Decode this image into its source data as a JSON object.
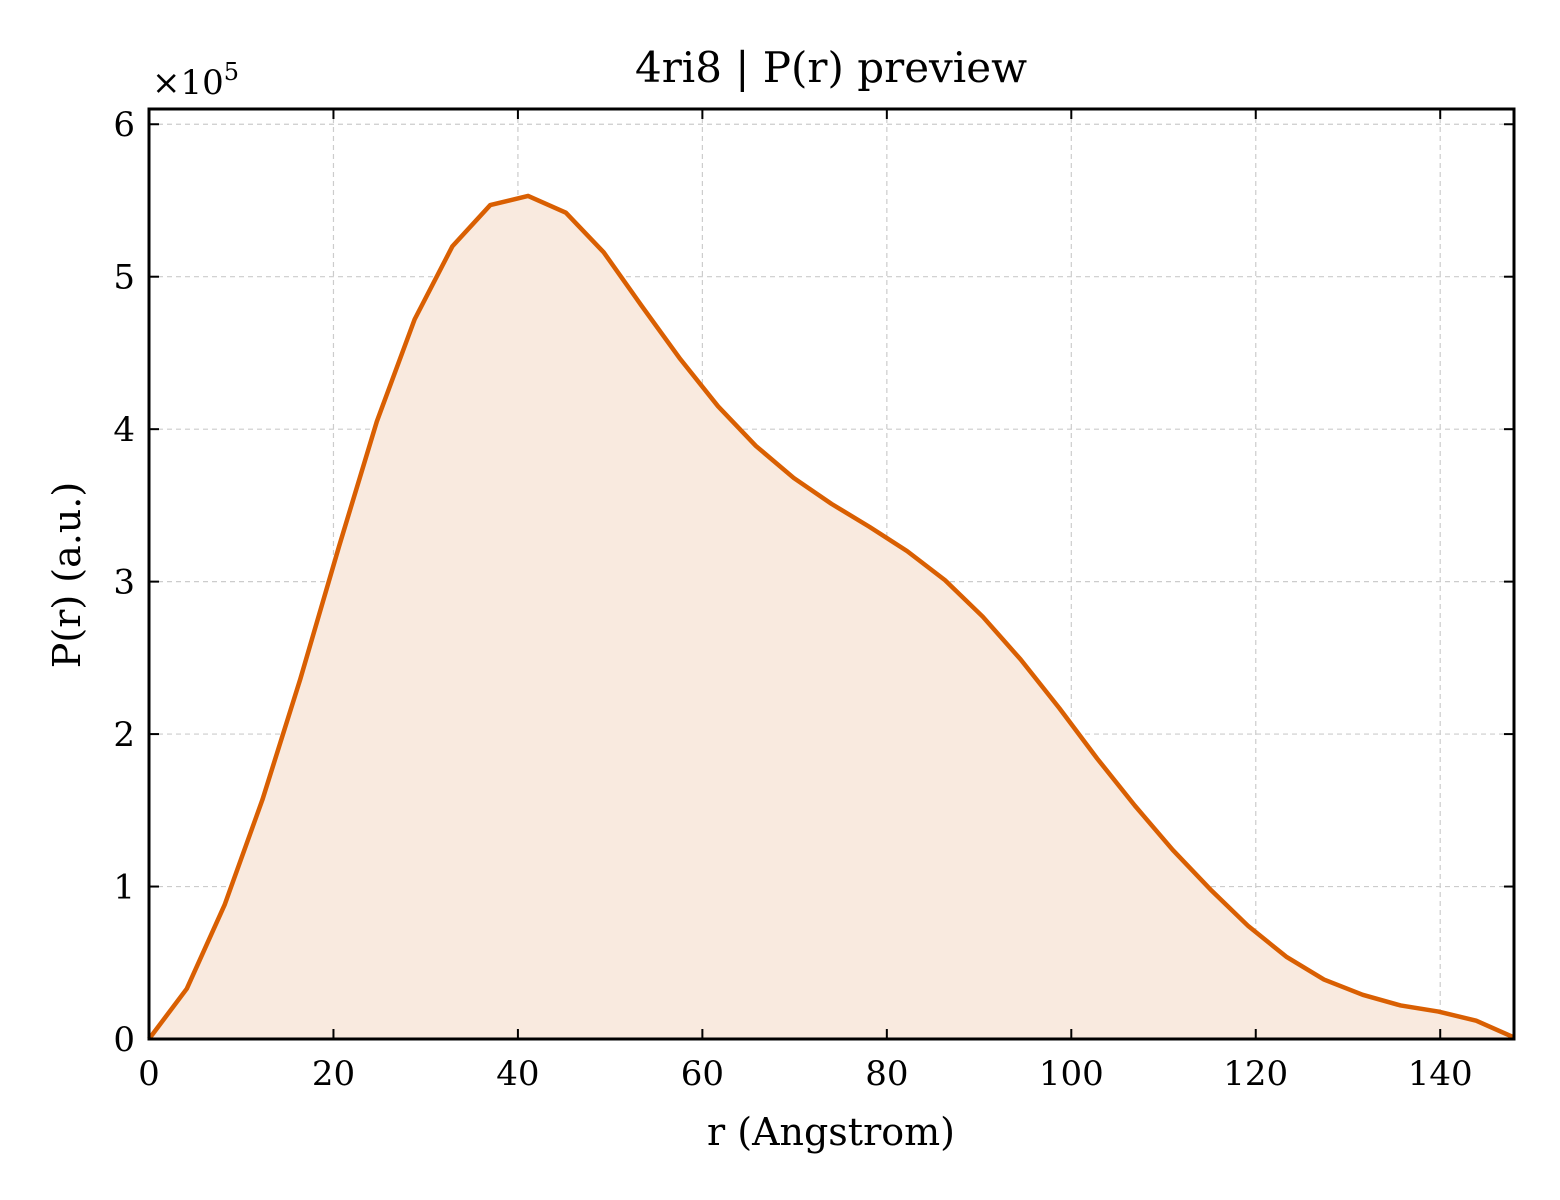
{
  "chart_data": {
    "type": "area",
    "title": "4ri8 | P(r) preview",
    "xlabel": "r (Angstrom)",
    "ylabel": "P(r) (a.u.)",
    "y_multiplier": {
      "base": "×10",
      "exponent": "5"
    },
    "xlim": [
      0,
      148
    ],
    "ylim": [
      0,
      6.1
    ],
    "x_ticks": [
      0,
      20,
      40,
      60,
      80,
      100,
      120,
      140
    ],
    "y_ticks": [
      0,
      1,
      2,
      3,
      4,
      5,
      6
    ],
    "x_tick_labels": [
      "0",
      "20",
      "40",
      "60",
      "80",
      "100",
      "120",
      "140"
    ],
    "y_tick_labels": [
      "0",
      "1",
      "2",
      "3",
      "4",
      "5",
      "6"
    ],
    "grid": true,
    "line_color": "#d95f02",
    "fill_color": "#f9eadf",
    "series": [
      {
        "x": [
          0,
          4.1,
          8.2,
          12.3,
          16.4,
          20.6,
          24.7,
          28.8,
          32.9,
          37.0,
          41.1,
          45.2,
          49.3,
          53.4,
          57.6,
          61.7,
          65.8,
          69.9,
          74.0,
          78.1,
          82.2,
          86.3,
          90.4,
          94.5,
          98.7,
          102.8,
          106.9,
          111.0,
          115.1,
          119.2,
          123.3,
          127.4,
          131.6,
          135.7,
          139.8,
          143.9,
          148.0
        ],
        "y": [
          0,
          0.33,
          0.88,
          1.57,
          2.36,
          3.23,
          4.05,
          4.72,
          5.2,
          5.47,
          5.53,
          5.42,
          5.16,
          4.81,
          4.46,
          4.15,
          3.89,
          3.68,
          3.51,
          3.36,
          3.2,
          3.01,
          2.77,
          2.49,
          2.17,
          1.84,
          1.53,
          1.24,
          0.98,
          0.74,
          0.54,
          0.39,
          0.29,
          0.22,
          0.18,
          0.12,
          0.01
        ]
      }
    ]
  }
}
